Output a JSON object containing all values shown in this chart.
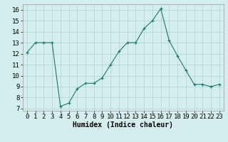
{
  "x": [
    0,
    1,
    2,
    3,
    4,
    5,
    6,
    7,
    8,
    9,
    10,
    11,
    12,
    13,
    14,
    15,
    16,
    17,
    18,
    19,
    20,
    21,
    22,
    23
  ],
  "y": [
    12.1,
    13.0,
    13.0,
    13.0,
    7.2,
    7.5,
    8.8,
    9.3,
    9.3,
    9.8,
    11.0,
    12.2,
    13.0,
    13.0,
    14.3,
    15.0,
    16.1,
    13.2,
    11.8,
    10.5,
    9.2,
    9.2,
    9.0,
    9.2
  ],
  "line_color": "#1a7a6e",
  "marker": "+",
  "marker_size": 3,
  "bg_color": "#d4eeed",
  "grid_color": "#afd4d0",
  "xlabel": "Humidex (Indice chaleur)",
  "xlim": [
    -0.5,
    23.5
  ],
  "ylim": [
    6.8,
    16.5
  ],
  "yticks": [
    7,
    8,
    9,
    10,
    11,
    12,
    13,
    14,
    15,
    16
  ],
  "xticks": [
    0,
    1,
    2,
    3,
    4,
    5,
    6,
    7,
    8,
    9,
    10,
    11,
    12,
    13,
    14,
    15,
    16,
    17,
    18,
    19,
    20,
    21,
    22,
    23
  ],
  "label_fontsize": 7,
  "tick_fontsize": 6.5
}
